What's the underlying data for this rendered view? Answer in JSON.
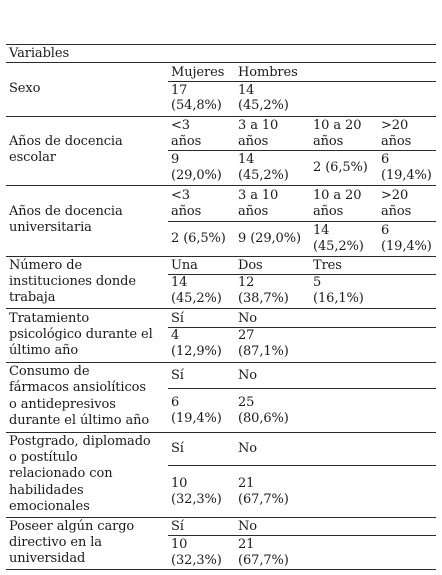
{
  "table": {
    "header": "Variables",
    "sexo": {
      "label": "Sexo",
      "cols": [
        "Mujeres",
        "Hombres"
      ],
      "values": [
        [
          "17",
          "(54,8%)"
        ],
        [
          "14",
          "(45,2%)"
        ]
      ]
    },
    "docencia_escolar": {
      "label": [
        "Años de docencia",
        "escolar"
      ],
      "cols": [
        [
          "<3",
          "años"
        ],
        [
          "3 a 10",
          "años"
        ],
        [
          "10 a 20",
          "años"
        ],
        [
          ">20",
          "años"
        ]
      ],
      "values": [
        [
          "9",
          "(29,0%)"
        ],
        [
          "14",
          "(45,2%)"
        ],
        [
          "2 (6,5%)"
        ],
        [
          "6",
          "(19,4%)"
        ]
      ]
    },
    "docencia_universitaria": {
      "label": [
        "Años de docencia",
        "universitaria"
      ],
      "cols": [
        [
          "<3",
          "años"
        ],
        [
          "3 a 10",
          "años"
        ],
        [
          "10 a 20",
          "años"
        ],
        [
          ">20",
          "años"
        ]
      ],
      "values": [
        [
          "2 (6,5%)"
        ],
        [
          "9 (29,0%)"
        ],
        [
          "14",
          "(45,2%)"
        ],
        [
          "6",
          "(19,4%)"
        ]
      ]
    },
    "instituciones": {
      "label": [
        "Número de",
        "instituciones donde",
        "trabaja"
      ],
      "cols": [
        "Una",
        "Dos",
        "Tres"
      ],
      "values": [
        [
          "14",
          "(45,2%)"
        ],
        [
          "12",
          "(38,7%)"
        ],
        [
          "5",
          "(16,1%)"
        ]
      ]
    },
    "tratamiento": {
      "label": [
        "Tratamiento",
        "psicológico durante el",
        "último año"
      ],
      "cols": [
        "Sí",
        "No"
      ],
      "values": [
        [
          "4",
          "(12,9%)"
        ],
        [
          "27",
          "(87,1%)"
        ]
      ]
    },
    "farmacos": {
      "label": [
        "Consumo de",
        "fármacos ansiolíticos",
        "o antidepresivos",
        "durante el último año"
      ],
      "cols": [
        "Sí",
        "No"
      ],
      "values": [
        [
          "6",
          "(19,4%)"
        ],
        [
          "25",
          "(80,6%)"
        ]
      ]
    },
    "postgrado": {
      "label": [
        "Postgrado, diplomado",
        "o postítulo",
        "relacionado con",
        "habilidades",
        "emocionales"
      ],
      "cols": [
        "Sí",
        "No"
      ],
      "values": [
        [
          "10",
          "(32,3%)"
        ],
        [
          "21",
          "(67,7%)"
        ]
      ]
    },
    "cargo": {
      "label": [
        "Poseer algún cargo",
        "directivo en la",
        "universidad"
      ],
      "cols": [
        "Sí",
        "No"
      ],
      "values": [
        [
          "10",
          "(32,3%)"
        ],
        [
          "21",
          "(67,7%)"
        ]
      ]
    }
  }
}
